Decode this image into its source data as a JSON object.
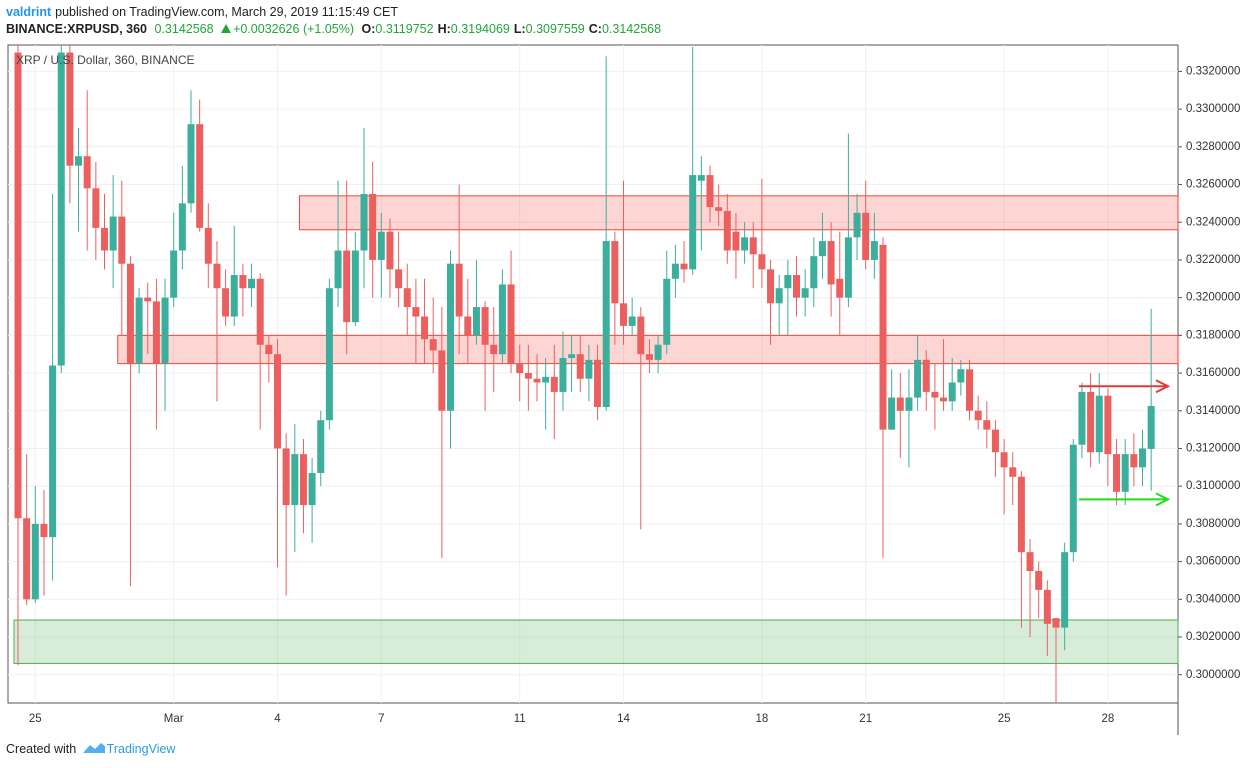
{
  "header": {
    "author": "valdrint",
    "published": "published on TradingView.com, March 29, 2019 11:15:49 CET",
    "symbol": "BINANCE:XRPUSD, 360",
    "last": "0.3142568",
    "change": "+0.0032626 (+1.05%)",
    "ohlc": [
      {
        "label": "O:",
        "value": "0.3119752"
      },
      {
        "label": "H:",
        "value": "0.3194069"
      },
      {
        "label": "L:",
        "value": "0.3097559"
      },
      {
        "label": "C:",
        "value": "0.3142568"
      }
    ]
  },
  "footer": {
    "text": "Created with",
    "brand": "TradingView"
  },
  "chart_data": {
    "type": "candlestick",
    "title": "XRP / U.S. Dollar, 360, BINANCE",
    "up_color": "#3cae9c",
    "down_color": "#ec5f5f",
    "grid": true,
    "ylim": [
      0.2985,
      0.3334
    ],
    "yticks": [
      {
        "value": 0.3,
        "label": "0.3000000"
      },
      {
        "value": 0.302,
        "label": "0.3020000"
      },
      {
        "value": 0.304,
        "label": "0.3040000"
      },
      {
        "value": 0.306,
        "label": "0.3060000"
      },
      {
        "value": 0.308,
        "label": "0.3080000"
      },
      {
        "value": 0.31,
        "label": "0.3100000"
      },
      {
        "value": 0.312,
        "label": "0.3120000"
      },
      {
        "value": 0.314,
        "label": "0.3140000"
      },
      {
        "value": 0.316,
        "label": "0.3160000"
      },
      {
        "value": 0.318,
        "label": "0.3180000"
      },
      {
        "value": 0.32,
        "label": "0.3200000"
      },
      {
        "value": 0.322,
        "label": "0.3220000"
      },
      {
        "value": 0.324,
        "label": "0.3240000"
      },
      {
        "value": 0.326,
        "label": "0.3260000"
      },
      {
        "value": 0.328,
        "label": "0.3280000"
      },
      {
        "value": 0.33,
        "label": "0.3300000"
      },
      {
        "value": 0.332,
        "label": "0.3320000"
      }
    ],
    "categories": [
      null,
      null,
      "25",
      null,
      null,
      null,
      null,
      null,
      null,
      null,
      null,
      null,
      null,
      null,
      null,
      null,
      null,
      null,
      "Mar",
      null,
      null,
      null,
      null,
      null,
      null,
      null,
      null,
      null,
      null,
      null,
      "4",
      null,
      null,
      null,
      null,
      null,
      null,
      null,
      null,
      null,
      null,
      null,
      "7",
      null,
      null,
      null,
      null,
      null,
      null,
      null,
      null,
      null,
      null,
      null,
      null,
      null,
      null,
      null,
      "11",
      null,
      null,
      null,
      null,
      null,
      null,
      null,
      null,
      null,
      null,
      null,
      "14",
      null,
      null,
      null,
      null,
      null,
      null,
      null,
      null,
      null,
      null,
      null,
      null,
      null,
      null,
      null,
      "18",
      null,
      null,
      null,
      null,
      null,
      null,
      null,
      null,
      null,
      null,
      null,
      "21",
      null,
      null,
      null,
      null,
      null,
      null,
      null,
      null,
      null,
      null,
      null,
      null,
      null,
      null,
      null,
      "25",
      null,
      null,
      null,
      null,
      null,
      null,
      null,
      null,
      null,
      null,
      null,
      "28",
      null,
      null,
      null,
      null,
      null
    ],
    "open": [
      0.333,
      0.3083,
      0.304,
      0.308,
      0.3073,
      0.3164,
      0.333,
      0.327,
      0.3275,
      0.3258,
      0.3237,
      0.3225,
      0.3243,
      0.3218,
      0.3165,
      0.32,
      0.3198,
      0.3165,
      0.32,
      0.3225,
      0.325,
      0.3292,
      0.3237,
      0.3218,
      0.3205,
      0.319,
      0.3212,
      0.3205,
      0.321,
      0.3175,
      0.317,
      0.312,
      0.309,
      0.3117,
      0.309,
      0.3107,
      0.3135,
      0.3205,
      0.3225,
      0.3187,
      0.3225,
      0.3255,
      0.322,
      0.3235,
      0.3215,
      0.3205,
      0.3195,
      0.319,
      0.3178,
      0.3172,
      0.314,
      0.3218,
      0.319,
      0.318,
      0.3195,
      0.3175,
      0.317,
      0.3207,
      0.3165,
      0.316,
      0.3157,
      0.3155,
      0.3158,
      0.315,
      0.3168,
      0.317,
      0.3157,
      0.3167,
      0.3142,
      0.323,
      0.3197,
      0.3185,
      0.319,
      0.317,
      0.3167,
      0.3175,
      0.321,
      0.3218,
      0.3215,
      0.3262,
      0.3265,
      0.3248,
      0.3246,
      0.3235,
      0.3225,
      0.3232,
      0.3223,
      0.3215,
      0.3197,
      0.3205,
      0.3212,
      0.32,
      0.3205,
      0.3222,
      0.323,
      0.321,
      0.32,
      0.3232,
      0.3245,
      0.322,
      0.3228,
      0.313,
      0.3147,
      0.314,
      0.3147,
      0.3167,
      0.315,
      0.3147,
      0.3145,
      0.3155,
      0.3162,
      0.314,
      0.3135,
      0.313,
      0.3118,
      0.311,
      0.3105,
      0.3065,
      0.3055,
      0.3045,
      0.303,
      0.3025,
      0.3065,
      0.3122,
      0.315,
      0.3118,
      0.3148,
      0.3117,
      0.3097,
      0.3117,
      0.311,
      0.3119752
    ],
    "high": [
      0.3334,
      0.3117,
      0.31,
      0.3098,
      0.3255,
      0.3334,
      0.3334,
      0.329,
      0.331,
      0.3272,
      0.3255,
      0.3265,
      0.3262,
      0.3222,
      0.3205,
      0.3208,
      0.321,
      0.321,
      0.3245,
      0.327,
      0.331,
      0.3305,
      0.325,
      0.323,
      0.3215,
      0.3238,
      0.3218,
      0.3218,
      0.3213,
      0.318,
      0.3178,
      0.3128,
      0.3133,
      0.3125,
      0.3115,
      0.314,
      0.321,
      0.3262,
      0.3262,
      0.3235,
      0.329,
      0.3272,
      0.3245,
      0.3242,
      0.3235,
      0.3218,
      0.321,
      0.321,
      0.32,
      0.3195,
      0.3225,
      0.326,
      0.321,
      0.322,
      0.3198,
      0.3195,
      0.3215,
      0.3225,
      0.3175,
      0.3175,
      0.317,
      0.3168,
      0.3175,
      0.3182,
      0.318,
      0.318,
      0.3175,
      0.3175,
      0.3328,
      0.3235,
      0.3262,
      0.32,
      0.3195,
      0.3178,
      0.318,
      0.3225,
      0.3228,
      0.323,
      0.3333,
      0.3275,
      0.327,
      0.326,
      0.3255,
      0.3245,
      0.324,
      0.324,
      0.3263,
      0.322,
      0.3212,
      0.322,
      0.3222,
      0.3215,
      0.3232,
      0.3245,
      0.324,
      0.3235,
      0.3287,
      0.3255,
      0.3262,
      0.3245,
      0.3232,
      0.3162,
      0.316,
      0.3162,
      0.318,
      0.3172,
      0.3165,
      0.3178,
      0.3168,
      0.3167,
      0.3167,
      0.3148,
      0.3145,
      0.3135,
      0.3125,
      0.3118,
      0.3108,
      0.3072,
      0.306,
      0.305,
      0.303,
      0.307,
      0.3125,
      0.3155,
      0.316,
      0.316,
      0.3152,
      0.3125,
      0.3125,
      0.3128,
      0.313,
      0.3194069
    ],
    "low": [
      0.3005,
      0.3037,
      0.3038,
      0.3042,
      0.305,
      0.316,
      0.325,
      0.3235,
      0.3225,
      0.322,
      0.3215,
      0.3205,
      0.318,
      0.3047,
      0.316,
      0.317,
      0.313,
      0.314,
      0.3195,
      0.3215,
      0.3245,
      0.3235,
      0.3205,
      0.3145,
      0.3185,
      0.3185,
      0.319,
      0.3195,
      0.313,
      0.3155,
      0.3057,
      0.3042,
      0.3065,
      0.3075,
      0.307,
      0.31,
      0.313,
      0.3195,
      0.317,
      0.3185,
      0.3205,
      0.32,
      0.32,
      0.32,
      0.3195,
      0.318,
      0.3165,
      0.3165,
      0.316,
      0.3062,
      0.312,
      0.317,
      0.3165,
      0.3175,
      0.314,
      0.315,
      0.3165,
      0.316,
      0.3145,
      0.314,
      0.3145,
      0.313,
      0.3125,
      0.314,
      0.315,
      0.315,
      0.3145,
      0.3135,
      0.314,
      0.3175,
      0.3175,
      0.318,
      0.3077,
      0.316,
      0.316,
      0.317,
      0.32,
      0.3208,
      0.3212,
      0.3225,
      0.324,
      0.3238,
      0.3218,
      0.321,
      0.3218,
      0.3205,
      0.3205,
      0.3175,
      0.318,
      0.318,
      0.319,
      0.319,
      0.3195,
      0.321,
      0.319,
      0.318,
      0.3195,
      0.322,
      0.3215,
      0.321,
      0.3062,
      0.313,
      0.3115,
      0.311,
      0.314,
      0.314,
      0.313,
      0.314,
      0.314,
      0.3148,
      0.3135,
      0.313,
      0.312,
      0.3105,
      0.3085,
      0.309,
      0.3025,
      0.302,
      0.303,
      0.301,
      0.2985,
      0.3013,
      0.306,
      0.3115,
      0.311,
      0.3112,
      0.31,
      0.309,
      0.309,
      0.31,
      0.31,
      0.3097559
    ],
    "close": [
      0.3083,
      0.304,
      0.308,
      0.3073,
      0.3164,
      0.333,
      0.327,
      0.3275,
      0.3258,
      0.3237,
      0.3225,
      0.3243,
      0.3218,
      0.3165,
      0.32,
      0.3198,
      0.3165,
      0.32,
      0.3225,
      0.325,
      0.3292,
      0.3237,
      0.3218,
      0.3205,
      0.319,
      0.3212,
      0.3205,
      0.321,
      0.3175,
      0.317,
      0.312,
      0.309,
      0.3117,
      0.309,
      0.3107,
      0.3135,
      0.3205,
      0.3225,
      0.3187,
      0.3225,
      0.3255,
      0.322,
      0.3235,
      0.3215,
      0.3205,
      0.3195,
      0.319,
      0.3178,
      0.3172,
      0.314,
      0.3218,
      0.319,
      0.318,
      0.3195,
      0.3175,
      0.317,
      0.3207,
      0.3165,
      0.316,
      0.3157,
      0.3155,
      0.3158,
      0.315,
      0.3168,
      0.317,
      0.3157,
      0.3167,
      0.3142,
      0.323,
      0.3197,
      0.3185,
      0.319,
      0.317,
      0.3167,
      0.3175,
      0.321,
      0.3218,
      0.3215,
      0.3265,
      0.3265,
      0.3248,
      0.3246,
      0.3225,
      0.3225,
      0.3232,
      0.3223,
      0.3215,
      0.3197,
      0.3205,
      0.3212,
      0.32,
      0.3205,
      0.3222,
      0.323,
      0.3207,
      0.32,
      0.3232,
      0.3245,
      0.322,
      0.323,
      0.313,
      0.3147,
      0.314,
      0.3147,
      0.3167,
      0.315,
      0.3147,
      0.3145,
      0.3155,
      0.3162,
      0.314,
      0.3135,
      0.313,
      0.3118,
      0.311,
      0.3105,
      0.3065,
      0.3055,
      0.3045,
      0.3027,
      0.3025,
      0.3065,
      0.3122,
      0.315,
      0.3118,
      0.3148,
      0.3117,
      0.3097,
      0.3117,
      0.311,
      0.312,
      0.3142568
    ],
    "zones": [
      {
        "ylow": 0.3236,
        "yhigh": 0.3254,
        "start": 33,
        "color": "#f44336"
      },
      {
        "ylow": 0.3165,
        "yhigh": 0.318,
        "start": 12,
        "color": "#f44336"
      },
      {
        "ylow": 0.3006,
        "yhigh": 0.3029,
        "start": 0,
        "color": "#4caf50"
      }
    ],
    "arrows": [
      {
        "y": 0.3153,
        "start": 123,
        "color": "#e53935"
      },
      {
        "y": 0.3093,
        "start": 123,
        "color": "#22dd22"
      }
    ]
  }
}
